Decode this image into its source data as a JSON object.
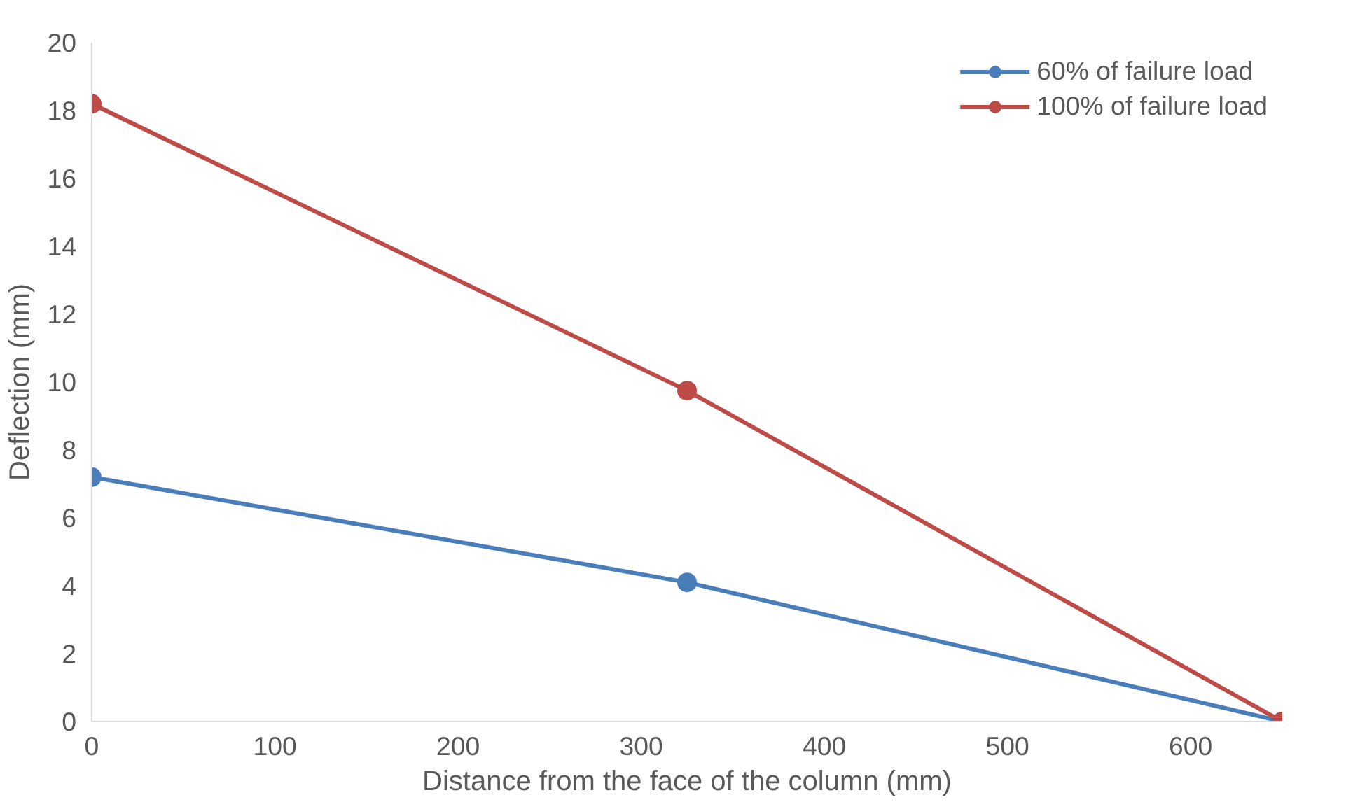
{
  "chart_data": {
    "type": "line",
    "xlabel": "Distance from the face of the column (mm)",
    "ylabel": "Deflection (mm)",
    "x": [
      0,
      325,
      650
    ],
    "series": [
      {
        "name": "60% of failure load",
        "color": "#4a7ebb",
        "values": [
          7.2,
          4.1,
          0
        ]
      },
      {
        "name": "100% of failure load",
        "color": "#be4b48",
        "values": [
          18.2,
          9.75,
          0
        ]
      }
    ],
    "xlim": [
      0,
      650
    ],
    "ylim": [
      0,
      20
    ],
    "xticks": [
      0,
      100,
      200,
      300,
      400,
      500,
      600
    ],
    "yticks": [
      0,
      2,
      4,
      6,
      8,
      10,
      12,
      14,
      16,
      18,
      20
    ],
    "grid": false,
    "legend": "top right",
    "marker": "circle",
    "line_style": "solid"
  }
}
